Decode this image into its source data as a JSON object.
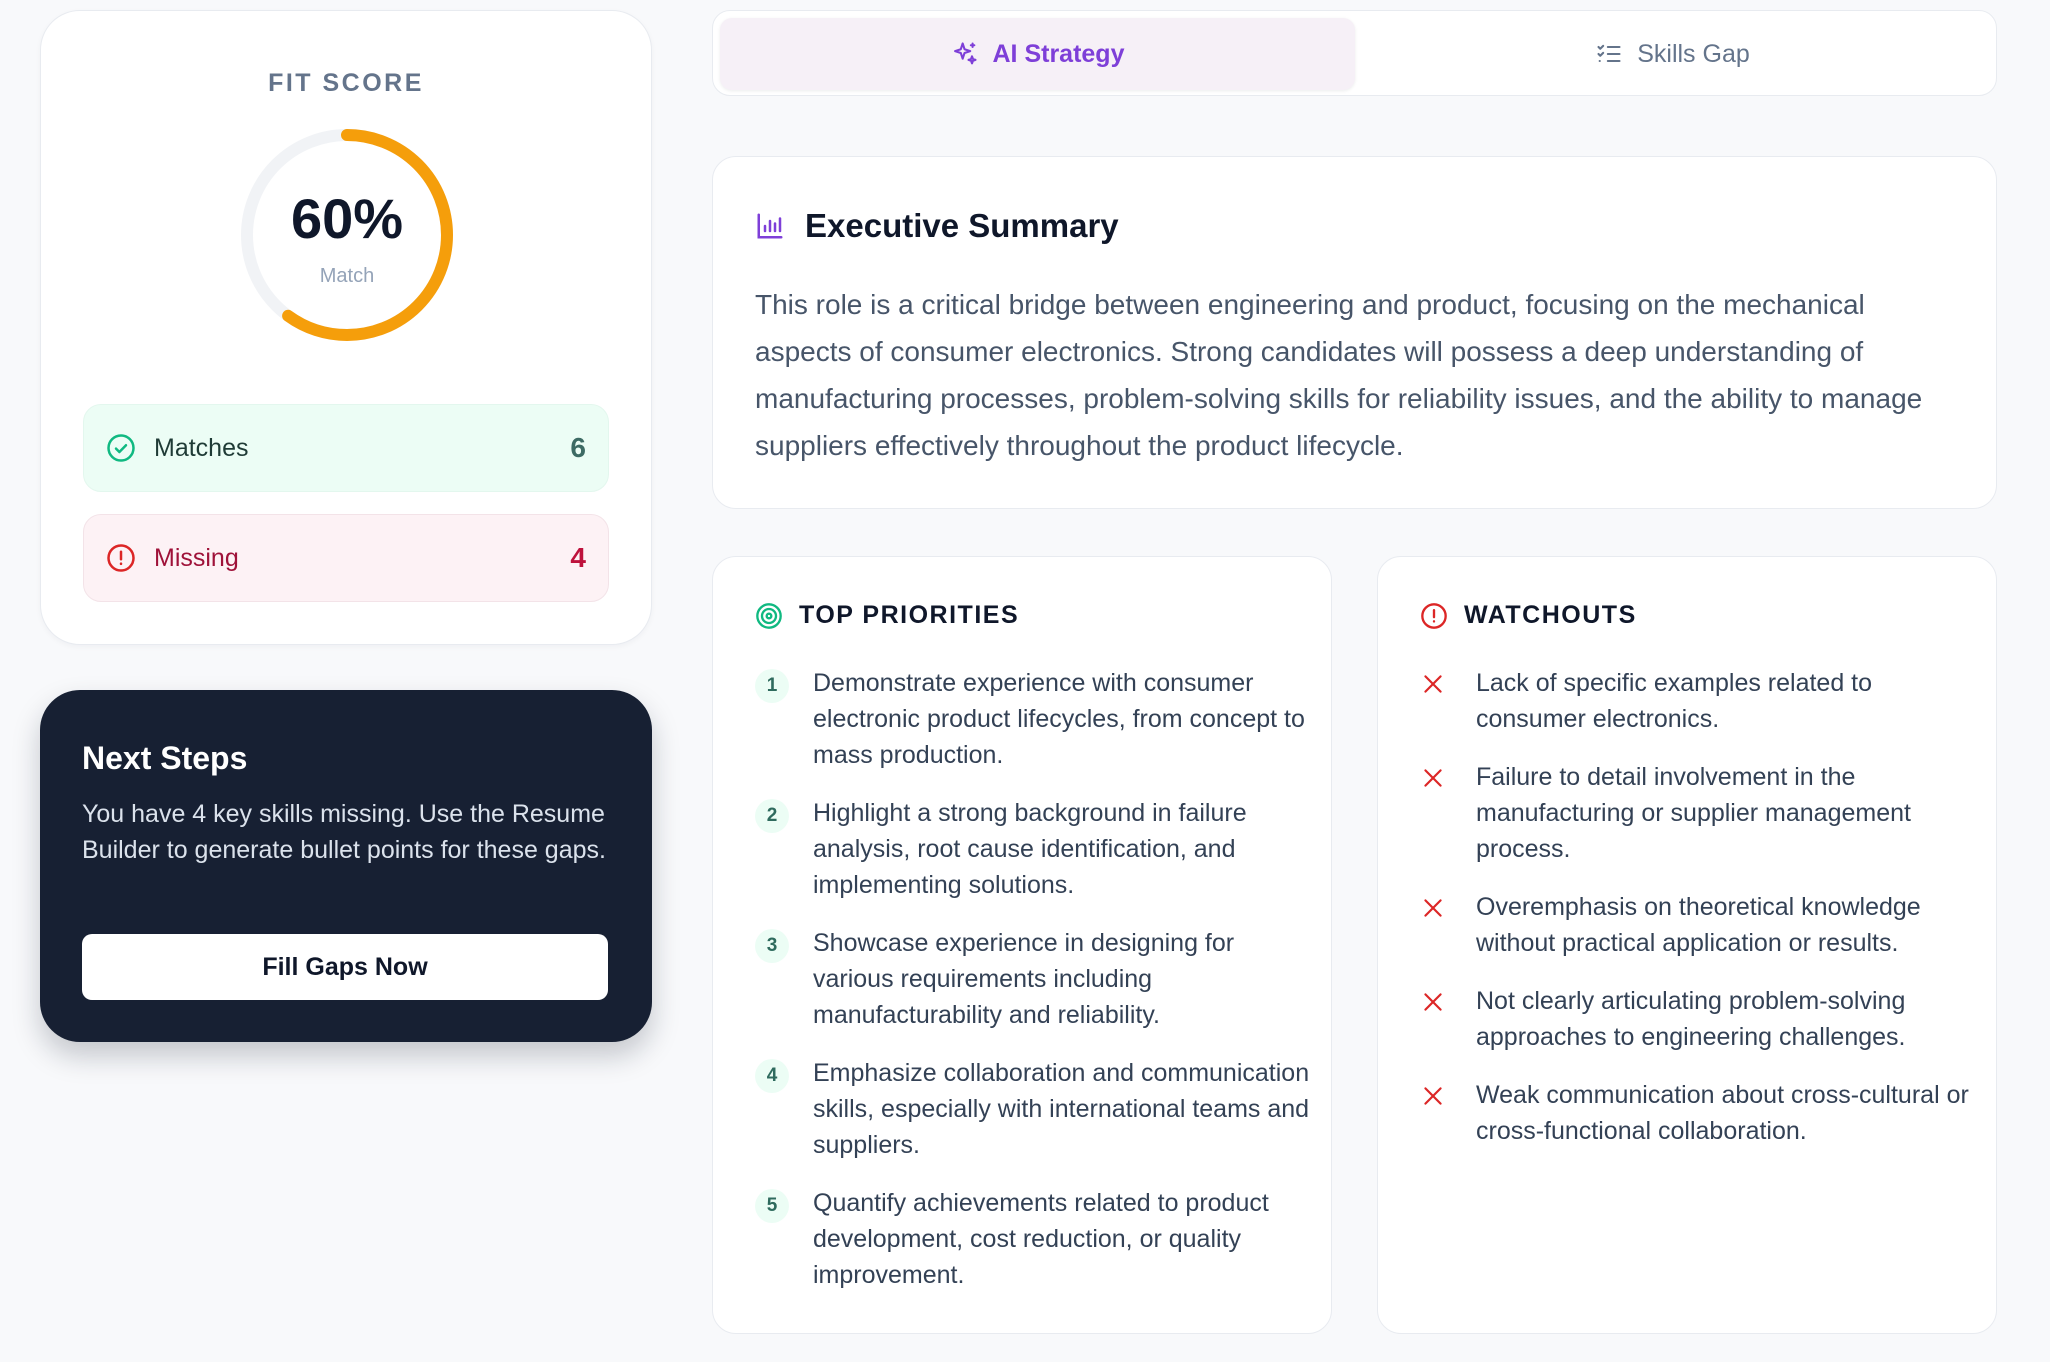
{
  "fit_score": {
    "title": "FIT SCORE",
    "percent_label": "60%",
    "percent_value": 60,
    "caption": "Match",
    "gauge_color": "#f59e0b",
    "matches": {
      "label": "Matches",
      "count": "6",
      "icon": "check-circle-icon"
    },
    "missing": {
      "label": "Missing",
      "count": "4",
      "icon": "alert-circle-icon"
    }
  },
  "next_steps": {
    "title": "Next Steps",
    "text": "You have 4 key skills missing. Use the Resume Builder to generate bullet points for these gaps.",
    "button_label": "Fill Gaps Now"
  },
  "tabs": [
    {
      "label": "AI Strategy",
      "icon": "sparkles-icon",
      "active": true
    },
    {
      "label": "Skills Gap",
      "icon": "checklist-icon",
      "active": false
    }
  ],
  "summary": {
    "title": "Executive Summary",
    "icon": "bar-chart-icon",
    "text": "This role is a critical bridge between engineering and product, focusing on the mechanical aspects of consumer electronics. Strong candidates will possess a deep understanding of manufacturing processes, problem-solving skills for reliability issues, and the ability to manage suppliers effectively throughout the product lifecycle."
  },
  "priorities": {
    "title": "TOP PRIORITIES",
    "icon": "target-icon",
    "items": [
      {
        "num": "1",
        "text": "Demonstrate experience with consumer electronic product lifecycles, from concept to mass production."
      },
      {
        "num": "2",
        "text": "Highlight a strong background in failure analysis, root cause identification, and implementing solutions."
      },
      {
        "num": "3",
        "text": "Showcase experience in designing for various requirements including manufacturability and reliability."
      },
      {
        "num": "4",
        "text": "Emphasize collaboration and communication skills, especially with international teams and suppliers."
      },
      {
        "num": "5",
        "text": "Quantify achievements related to product development, cost reduction, or quality improvement."
      }
    ]
  },
  "watchouts": {
    "title": "WATCHOUTS",
    "icon": "alert-circle-icon",
    "items": [
      {
        "text": "Lack of specific examples related to consumer electronics."
      },
      {
        "text": "Failure to detail involvement in the manufacturing or supplier management process."
      },
      {
        "text": "Overemphasis on theoretical knowledge without practical application or results."
      },
      {
        "text": "Not clearly articulating problem-solving approaches to engineering challenges."
      },
      {
        "text": "Weak communication about cross-cultural or cross-functional collaboration."
      }
    ]
  },
  "colors": {
    "accent_purple": "#7e3fd8",
    "success_green": "#10b981",
    "danger_red": "#be123c",
    "dark_card": "#172033"
  }
}
